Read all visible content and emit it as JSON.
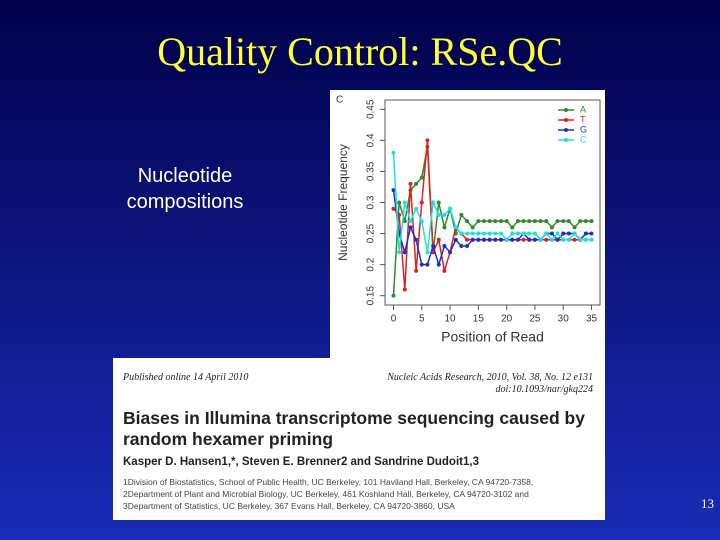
{
  "slide": {
    "title": "Quality Control: RSe.QC",
    "caption": "Nucleotide compositions",
    "page_number": "13"
  },
  "chart_data": {
    "type": "line",
    "panel_label": "C",
    "x_label": "Position of Read",
    "y_label": "Nucleotide Frequency",
    "x": [
      0,
      1,
      2,
      3,
      4,
      5,
      6,
      7,
      8,
      9,
      10,
      11,
      12,
      13,
      14,
      15,
      16,
      17,
      18,
      19,
      20,
      21,
      22,
      23,
      24,
      25,
      26,
      27,
      28,
      29,
      30,
      31,
      32,
      33,
      34,
      35
    ],
    "series": [
      {
        "name": "A",
        "color": "#2e8b2e",
        "values": [
          0.15,
          0.3,
          0.27,
          0.32,
          0.33,
          0.34,
          0.39,
          0.22,
          0.3,
          0.26,
          0.29,
          0.25,
          0.28,
          0.27,
          0.26,
          0.27,
          0.27,
          0.27,
          0.27,
          0.27,
          0.27,
          0.26,
          0.27,
          0.27,
          0.27,
          0.27,
          0.27,
          0.27,
          0.26,
          0.27,
          0.27,
          0.27,
          0.26,
          0.27,
          0.27,
          0.27
        ]
      },
      {
        "name": "T",
        "color": "#e02020",
        "values": [
          0.29,
          0.28,
          0.16,
          0.33,
          0.19,
          0.3,
          0.4,
          0.22,
          0.24,
          0.19,
          0.22,
          0.26,
          0.25,
          0.24,
          0.24,
          0.24,
          0.24,
          0.24,
          0.24,
          0.24,
          0.24,
          0.24,
          0.24,
          0.24,
          0.24,
          0.24,
          0.24,
          0.24,
          0.24,
          0.24,
          0.24,
          0.24,
          0.24,
          0.24,
          0.24,
          0.24
        ]
      },
      {
        "name": "G",
        "color": "#2030c0",
        "values": [
          0.32,
          0.25,
          0.22,
          0.26,
          0.24,
          0.2,
          0.2,
          0.23,
          0.2,
          0.23,
          0.22,
          0.24,
          0.23,
          0.23,
          0.24,
          0.24,
          0.24,
          0.24,
          0.24,
          0.24,
          0.24,
          0.24,
          0.24,
          0.25,
          0.24,
          0.24,
          0.24,
          0.25,
          0.25,
          0.24,
          0.25,
          0.25,
          0.25,
          0.24,
          0.25,
          0.25
        ]
      },
      {
        "name": "C",
        "color": "#20dede",
        "values": [
          0.38,
          0.22,
          0.3,
          0.27,
          0.29,
          0.27,
          0.22,
          0.3,
          0.28,
          0.28,
          0.29,
          0.26,
          0.25,
          0.25,
          0.25,
          0.25,
          0.25,
          0.25,
          0.25,
          0.25,
          0.24,
          0.25,
          0.25,
          0.25,
          0.25,
          0.25,
          0.24,
          0.25,
          0.24,
          0.25,
          0.24,
          0.24,
          0.25,
          0.24,
          0.24,
          0.24
        ]
      }
    ],
    "xlim": [
      -1.5,
      36.5
    ],
    "xticks": [
      0,
      5,
      10,
      15,
      20,
      25,
      30,
      35
    ],
    "ylim": [
      0.135,
      0.465
    ],
    "yticks": [
      0.15,
      0.2,
      0.25,
      0.3,
      0.35,
      0.4,
      0.45
    ],
    "legend": "upper right"
  },
  "paper": {
    "published": "Published online 14 April 2010",
    "journal": "Nucleic Acids Research, 2010, Vol. 38, No. 12 e131",
    "doi": "doi:10.1093/nar/gkq224",
    "title": "Biases in Illumina transcriptome sequencing caused by random hexamer priming",
    "authors": "Kasper D. Hansen1,*, Steven E. Brenner2 and Sandrine Dudoit1,3",
    "affiliations": [
      "1Division of Biostatistics, School of Public Health, UC Berkeley, 101 Haviland Hall, Berkeley, CA 94720-7358,",
      "2Department of Plant and Microbial Biology, UC Berkeley, 461 Koshland Hall, Berkeley, CA 94720-3102 and",
      "3Department of Statistics, UC Berkeley, 367 Evans Hall, Berkeley, CA 94720-3860, USA"
    ]
  }
}
